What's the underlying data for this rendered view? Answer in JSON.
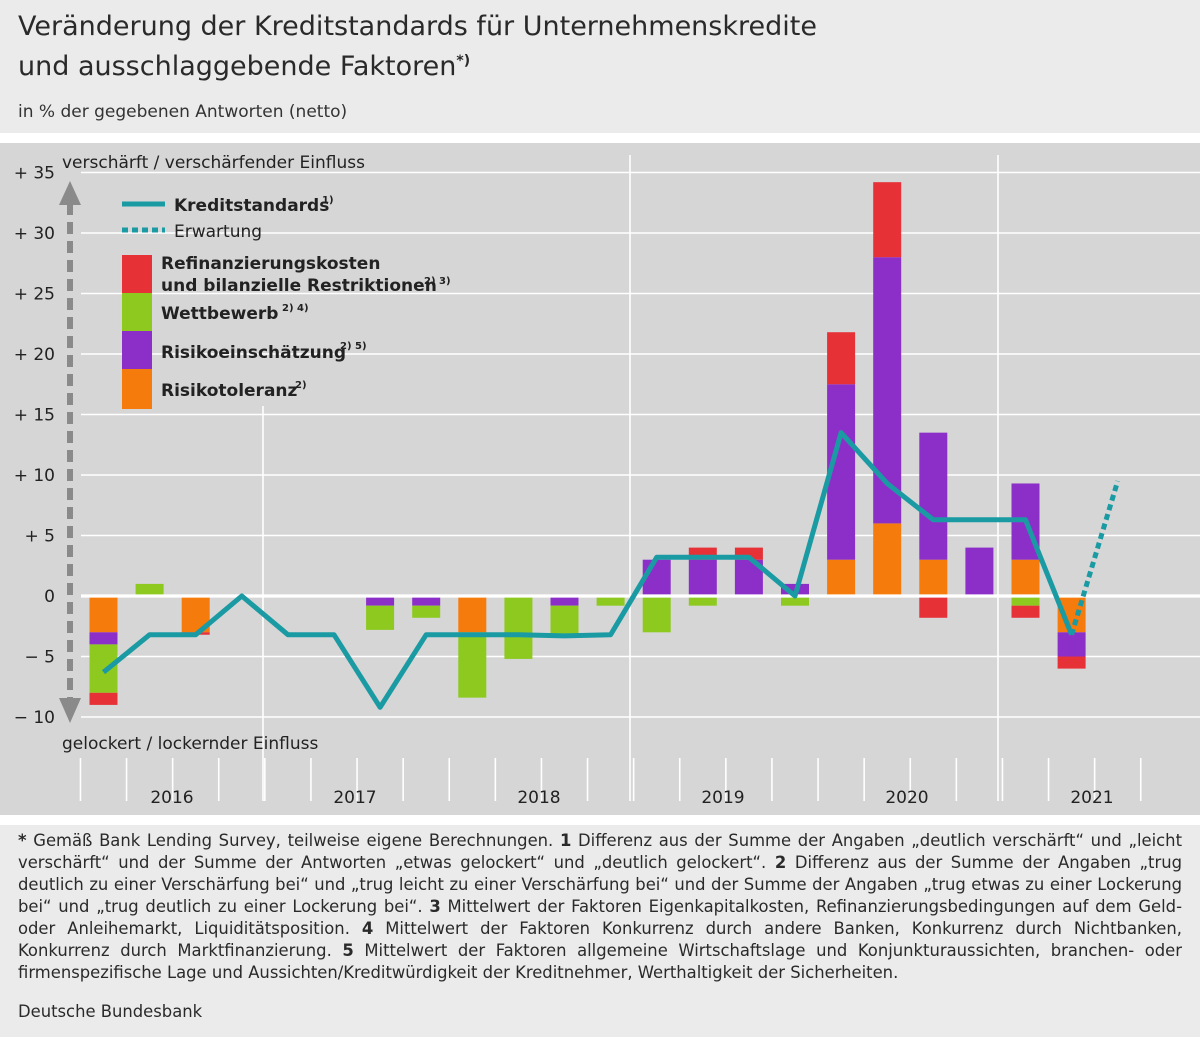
{
  "title_line1": "Veränderung der Kreditstandards für Unternehmenskredite",
  "title_line2": "und ausschlaggebende Faktoren",
  "title_sup": "*)",
  "subtitle": "in % der gegebenen Antworten (netto)",
  "colors": {
    "refinanzierung": "#e63137",
    "wettbewerb": "#8dc91f",
    "risikoeinschaetzung": "#8c2fc8",
    "risikotoleranz": "#f47b0c",
    "kreditstandards": "#1a9aa3",
    "axis_arrow": "#8a8a8a"
  },
  "chart_data": {
    "type": "bar",
    "subtype": "stacked bar with line overlay",
    "y_top_label": "verschärft / verschärfender Einfluss",
    "y_bottom_label": "gelockert / lockernder Einfluss",
    "yticks": [
      "+ 35",
      "+ 30",
      "+ 25",
      "+ 20",
      "+ 15",
      "+ 10",
      "+  5",
      "0",
      "− 5",
      "− 10"
    ],
    "ytick_values": [
      35,
      30,
      25,
      20,
      15,
      10,
      5,
      0,
      -5,
      -10
    ],
    "ylim": [
      -12,
      36
    ],
    "years": [
      "2016",
      "2017",
      "2018",
      "2019",
      "2020",
      "2021"
    ],
    "quarters": [
      "2016Q1",
      "2016Q2",
      "2016Q3",
      "2016Q4",
      "2017Q1",
      "2017Q2",
      "2017Q3",
      "2017Q4",
      "2018Q1",
      "2018Q2",
      "2018Q3",
      "2018Q4",
      "2019Q1",
      "2019Q2",
      "2019Q3",
      "2019Q4",
      "2020Q1",
      "2020Q2",
      "2020Q3",
      "2020Q4",
      "2021Q1",
      "2021Q2",
      "2021Q3"
    ],
    "legend": {
      "kreditstandards": "Kreditstandards",
      "kreditstandards_sup": "1)",
      "erwartung": "Erwartung",
      "refinanzierung_1": "Refinanzierungskosten",
      "refinanzierung_2": "und bilanzielle Restriktionen",
      "refinanzierung_sup": "2) 3)",
      "wettbewerb": "Wettbewerb",
      "wettbewerb_sup": "2) 4)",
      "risikoeinschaetzung": "Risikoeinschätzung",
      "risikoeinschaetzung_sup": "2) 5)",
      "risikotoleranz": "Risikotoleranz",
      "risikotoleranz_sup": "2)"
    },
    "series": [
      {
        "name": "Risikotoleranz",
        "values": [
          -3.0,
          null,
          -3.0,
          null,
          null,
          null,
          null,
          null,
          -3.0,
          null,
          null,
          null,
          null,
          null,
          null,
          null,
          3.0,
          6.0,
          3.0,
          null,
          3.0,
          -3.0,
          null
        ]
      },
      {
        "name": "Risikoeinschätzung",
        "values": [
          -1.0,
          null,
          null,
          null,
          null,
          null,
          -0.8,
          -0.8,
          null,
          null,
          -0.8,
          null,
          3.0,
          3.0,
          3.0,
          1.0,
          14.5,
          22.0,
          10.5,
          4.0,
          6.3,
          -2.0,
          null
        ]
      },
      {
        "name": "Wettbewerb",
        "values": [
          -4.0,
          1.0,
          null,
          null,
          null,
          null,
          -2.0,
          -1.0,
          -5.4,
          -5.2,
          -2.3,
          -0.8,
          -3.0,
          -0.8,
          null,
          -0.8,
          null,
          null,
          null,
          null,
          -0.8,
          null,
          null
        ]
      },
      {
        "name": "Refinanzierungskosten und bilanzielle Restriktionen",
        "values": [
          -1.0,
          null,
          -0.2,
          null,
          null,
          null,
          null,
          null,
          null,
          null,
          null,
          null,
          null,
          1.0,
          1.0,
          null,
          4.3,
          6.2,
          -1.8,
          null,
          -1.0,
          -1.0,
          null
        ]
      },
      {
        "name": "Kreditstandards",
        "values": [
          -6.3,
          -3.2,
          -3.2,
          0,
          -3.2,
          -3.2,
          -9.2,
          -3.2,
          -3.2,
          -3.2,
          -3.3,
          -3.2,
          3.2,
          3.2,
          3.2,
          0,
          13.5,
          9.3,
          6.3,
          6.3,
          6.3,
          -3.2,
          null
        ]
      },
      {
        "name": "Erwartung",
        "values": [
          null,
          null,
          null,
          null,
          null,
          null,
          null,
          null,
          null,
          null,
          null,
          null,
          null,
          null,
          null,
          null,
          null,
          null,
          null,
          null,
          null,
          -3.2,
          9.5
        ]
      }
    ]
  },
  "footnote": {
    "star": "*",
    "t0": " Gemäß Bank Lending Survey, teilweise eigene Berechnungen. ",
    "n1": "1",
    "t1": " Differenz aus der Summe der Angaben „deutlich verschärft“ und „leicht verschärft“ und der Summe der Antworten „etwas gelockert“ und „deutlich gelockert“. ",
    "n2": "2",
    "t2": " Differenz aus der Summe der Angaben „trug deutlich zu einer Verschärfung bei“ und „trug leicht zu einer Verschärfung bei“ und der Summe der Angaben „trug etwas zu einer Lockerung bei“ und „trug deutlich zu einer Lockerung bei“. ",
    "n3": "3",
    "t3": " Mittelwert der Faktoren Eigenkapitalkosten, Refinanzierungsbedingungen auf dem Geld- oder Anleihemarkt, Liquiditätsposition. ",
    "n4": "4",
    "t4": " Mittelwert der Faktoren Konkurrenz durch andere Banken, Konkurrenz durch Nichtbanken, Konkurrenz durch Marktfinanzierung. ",
    "n5": "5",
    "t5": " Mittelwert der Faktoren allgemeine Wirtschaftslage und Konjunkturaussichten, branchen- oder firmenspezifische Lage und Aussichten/Kreditwürdigkeit der Kreditnehmer, Werthaltigkeit der Sicherheiten."
  },
  "source": "Deutsche Bundesbank"
}
